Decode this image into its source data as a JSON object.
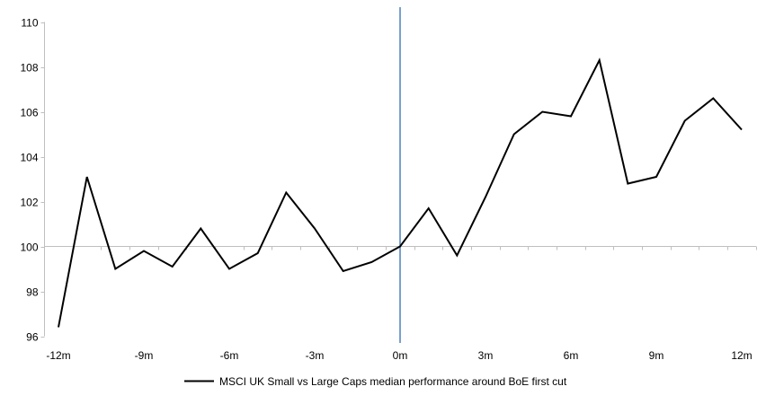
{
  "chart_data": {
    "type": "line",
    "title": "",
    "x_label": "",
    "y_label": "",
    "x_unit": "months relative to first cut",
    "x_months": [
      -12,
      -11,
      -10,
      -9,
      -8,
      -7,
      -6,
      -5,
      -4,
      -3,
      -2,
      -1,
      0,
      1,
      2,
      3,
      4,
      5,
      6,
      7,
      8,
      9,
      10,
      11,
      12
    ],
    "series": [
      {
        "name": "MSCI UK Small vs Large Caps median performance around BoE first cut",
        "color": "#000000",
        "values": [
          96.4,
          103.1,
          99.0,
          99.8,
          99.1,
          100.8,
          99.0,
          99.7,
          102.4,
          100.8,
          98.9,
          99.3,
          100.0,
          101.7,
          99.6,
          102.2,
          105.0,
          106.0,
          105.8,
          108.3,
          102.8,
          103.1,
          105.6,
          106.6,
          105.2
        ]
      }
    ],
    "x_tick_months": [
      -12,
      -9,
      -6,
      -3,
      0,
      3,
      6,
      9,
      12
    ],
    "x_tick_labels": [
      "-12m",
      "-9m",
      "-6m",
      "-3m",
      "0m",
      "3m",
      "6m",
      "9m",
      "12m"
    ],
    "y_ticks": [
      110,
      108,
      106,
      104,
      102,
      100,
      98,
      96
    ],
    "y_lim": [
      96,
      110
    ],
    "x_lim": [
      -12,
      12
    ],
    "baseline_value": 100,
    "event_line": {
      "x_month": 0,
      "color": "#4f81bd"
    },
    "colors": {
      "axis": "#bfbfbf",
      "baseline": "#bfbfbf",
      "series": "#000000",
      "text": "#000000",
      "background": "#ffffff"
    },
    "grid": "baseline-only",
    "legend_position": "bottom-center",
    "legend": {
      "label": "MSCI UK Small vs Large Caps median performance around BoE first cut"
    }
  }
}
